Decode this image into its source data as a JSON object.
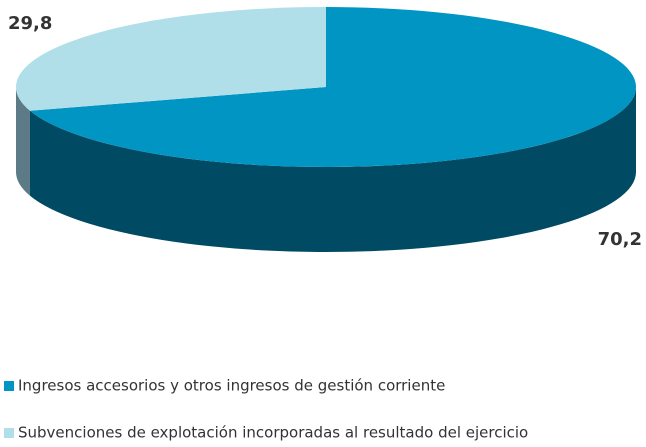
{
  "chart_data": {
    "type": "pie",
    "categories": [
      "Ingresos accesorios y otros ingresos de gestión corriente",
      "Subvenciones de explotación incorporadas al resultado del ejercicio"
    ],
    "values": [
      70.2,
      29.8
    ],
    "value_labels": [
      "70,2",
      "29,8"
    ],
    "colors": [
      "#0095c3",
      "#b0dfea"
    ],
    "side_colors": [
      "#004b63",
      "#5d7b87"
    ]
  }
}
